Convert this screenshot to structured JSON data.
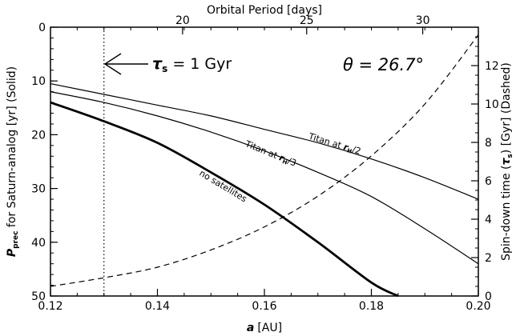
{
  "chart_data": {
    "type": "line",
    "title": "",
    "xlabel": "a [AU]",
    "xlabel_symbol": "a",
    "xlabel_unit": "[AU]",
    "ylabel_left": "P_prec for Saturn-analog [yr] (Solid)",
    "ylabel_left_symbol": "P",
    "ylabel_left_sub": "prec",
    "ylabel_left_rest": " for Saturn-analog [yr] (Solid)",
    "ylabel_right": "Spin-down time (τs) [Gyr] (Dashed)",
    "ylabel_right_pre": "Spin-down time (",
    "ylabel_right_tau": "τ",
    "ylabel_right_sub": "s",
    "ylabel_right_post": ") [Gyr] (Dashed)",
    "xlabel_top": "Orbital Period [days]",
    "xlim": [
      0.12,
      0.2
    ],
    "ylim_left": [
      50,
      0
    ],
    "ylim_right": [
      0,
      14
    ],
    "x_ticks": [
      "0.12",
      "0.14",
      "0.16",
      "0.18",
      "0.20"
    ],
    "y_left_ticks": [
      "0",
      "10",
      "20",
      "30",
      "40",
      "50"
    ],
    "y_right_ticks": [
      "0",
      "2",
      "4",
      "6",
      "8",
      "10",
      "12"
    ],
    "x_top_ticks": [
      "20",
      "25",
      "30"
    ],
    "grid": false,
    "series": [
      {
        "name": "no satellites",
        "axis": "left",
        "style": "solid-thick",
        "x": [
          0.12,
          0.13,
          0.14,
          0.15,
          0.16,
          0.17,
          0.18,
          0.185
        ],
        "y": [
          14,
          17.5,
          21.5,
          27,
          33,
          40,
          47.5,
          50
        ]
      },
      {
        "name": "Titan at r_H/3",
        "axis": "left",
        "style": "solid",
        "x": [
          0.12,
          0.13,
          0.14,
          0.15,
          0.16,
          0.17,
          0.18,
          0.19,
          0.2
        ],
        "y": [
          12,
          14,
          16.5,
          19.5,
          23,
          27,
          31.5,
          37.5,
          44
        ]
      },
      {
        "name": "Titan at r_H/2",
        "axis": "left",
        "style": "solid",
        "x": [
          0.12,
          0.13,
          0.14,
          0.15,
          0.16,
          0.17,
          0.18,
          0.19,
          0.2
        ],
        "y": [
          10.5,
          12.5,
          14.5,
          16.5,
          19,
          21.5,
          24.5,
          28,
          32
        ]
      },
      {
        "name": "spin-down time",
        "axis": "right",
        "style": "dashed",
        "x": [
          0.12,
          0.13,
          0.14,
          0.15,
          0.16,
          0.17,
          0.18,
          0.19,
          0.2
        ],
        "y": [
          0.5,
          0.95,
          1.5,
          2.4,
          3.6,
          5.2,
          7.3,
          10.0,
          13.6
        ]
      }
    ],
    "curve_labels": [
      {
        "text": "Titan at ",
        "tau": "r",
        "sub": "H",
        "tail": "/2",
        "x": 0.173,
        "y": 22.2,
        "axis": "left"
      },
      {
        "text": "Titan at ",
        "tau": "r",
        "sub": "H",
        "tail": "/3",
        "x": 0.161,
        "y": 24.0,
        "axis": "left"
      },
      {
        "text": "no satellites",
        "x": 0.152,
        "y": 30.0,
        "axis": "left"
      }
    ],
    "annotations": {
      "vline_x": 0.13,
      "tau_label_pre": "τ",
      "tau_label_sub": "s",
      "tau_label_post": " = 1 Gyr",
      "theta_label": "θ = 26.7°"
    },
    "period_tick_positions_au": [
      0.1447,
      0.1679,
      0.1896
    ]
  }
}
